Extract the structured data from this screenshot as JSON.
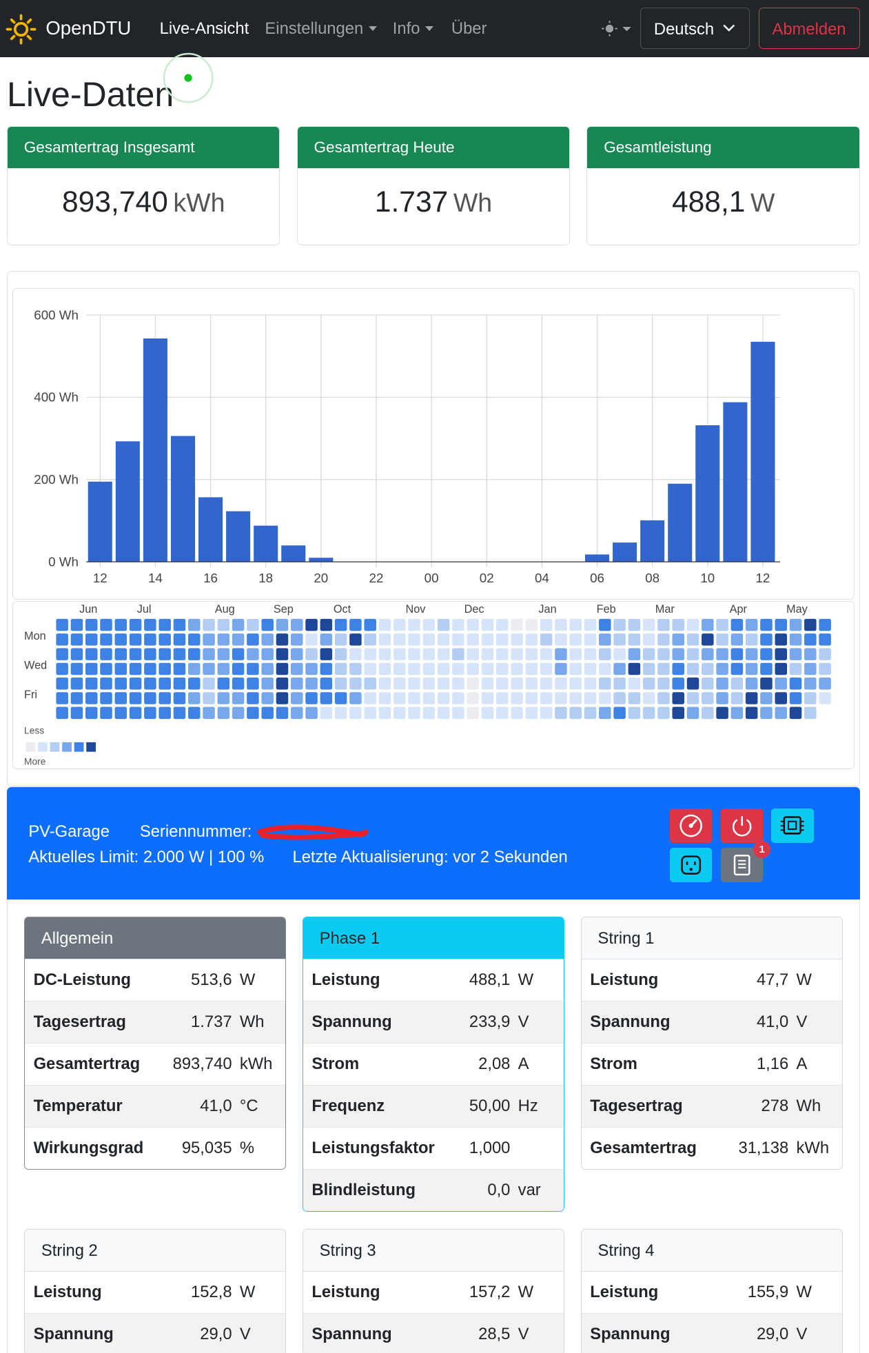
{
  "navbar": {
    "brand": "OpenDTU",
    "items": [
      "Live-Ansicht",
      "Einstellungen",
      "Info",
      "Über"
    ],
    "language": "Deutsch",
    "logout": "Abmelden"
  },
  "heading": "Live-Daten",
  "summary": [
    {
      "title": "Gesamtertrag Insgesamt",
      "value": "893,740",
      "unit": "kWh"
    },
    {
      "title": "Gesamtertrag Heute",
      "value": "1.737",
      "unit": "Wh"
    },
    {
      "title": "Gesamtleistung",
      "value": "488,1",
      "unit": "W"
    }
  ],
  "chart_data": {
    "type": "bar",
    "categories": [
      "12",
      null,
      "14",
      null,
      "16",
      null,
      "18",
      null,
      "20",
      null,
      "22",
      null,
      "00",
      null,
      "02",
      null,
      "04",
      null,
      "06",
      null,
      "08",
      null,
      "10",
      null,
      "12"
    ],
    "values": [
      195,
      293,
      543,
      306,
      157,
      123,
      88,
      40,
      10,
      0,
      0,
      0,
      0,
      0,
      0,
      0,
      0,
      0,
      18,
      47,
      101,
      190,
      332,
      388,
      535
    ],
    "color": "#3366cc",
    "ylim": [
      0,
      600
    ],
    "yticks": [
      {
        "value": 0,
        "label": "0 Wh"
      },
      {
        "value": 200,
        "label": "200 Wh"
      },
      {
        "value": 400,
        "label": "400 Wh"
      },
      {
        "value": 600,
        "label": "600 Wh"
      }
    ],
    "grid": true
  },
  "heatmap": {
    "months": [
      "Jun",
      "Jul",
      "Aug",
      "Sep",
      "Oct",
      "Nov",
      "Dec",
      "Jan",
      "Feb",
      "Mar",
      "Apr",
      "May"
    ],
    "days": [
      "Mon",
      "Wed",
      "Fri"
    ],
    "legend": {
      "less": "Less",
      "more": "More"
    },
    "colors": [
      "#ebedf0",
      "#d6e4f9",
      "#b3cdf3",
      "#78a8ec",
      "#3d82e4",
      "#1f4799"
    ],
    "rows": [
      [
        4,
        4,
        4,
        4,
        4,
        4,
        4,
        4,
        4,
        3,
        2,
        2,
        3,
        2,
        4,
        3,
        3,
        5,
        5,
        4,
        4,
        4,
        1,
        1,
        1,
        1,
        2,
        1,
        1,
        1,
        1,
        0,
        0,
        1,
        1,
        1,
        1,
        4,
        2,
        2,
        1,
        2,
        2,
        1,
        3,
        2,
        4,
        3,
        4,
        4,
        3,
        5,
        4
      ],
      [
        4,
        4,
        4,
        4,
        4,
        4,
        4,
        4,
        4,
        4,
        3,
        3,
        3,
        4,
        3,
        5,
        3,
        1,
        3,
        2,
        5,
        2,
        1,
        1,
        1,
        1,
        1,
        1,
        1,
        1,
        1,
        1,
        1,
        2,
        1,
        1,
        1,
        3,
        2,
        2,
        1,
        2,
        3,
        2,
        5,
        2,
        3,
        2,
        4,
        5,
        3,
        4,
        4
      ],
      [
        4,
        4,
        4,
        4,
        4,
        4,
        4,
        4,
        4,
        4,
        3,
        3,
        4,
        3,
        3,
        5,
        3,
        2,
        5,
        2,
        1,
        1,
        1,
        1,
        1,
        1,
        1,
        2,
        1,
        1,
        1,
        1,
        1,
        1,
        3,
        1,
        1,
        2,
        1,
        3,
        2,
        2,
        3,
        2,
        3,
        3,
        4,
        3,
        4,
        5,
        3,
        3,
        2
      ],
      [
        4,
        4,
        4,
        4,
        4,
        4,
        4,
        4,
        4,
        3,
        3,
        3,
        4,
        4,
        3,
        5,
        3,
        3,
        4,
        2,
        2,
        1,
        1,
        1,
        1,
        1,
        1,
        1,
        1,
        1,
        1,
        1,
        1,
        1,
        3,
        1,
        1,
        1,
        3,
        5,
        2,
        2,
        4,
        2,
        2,
        3,
        4,
        3,
        4,
        5,
        2,
        3,
        2
      ],
      [
        4,
        4,
        4,
        4,
        4,
        4,
        4,
        4,
        4,
        4,
        2,
        4,
        4,
        4,
        3,
        5,
        3,
        3,
        4,
        2,
        2,
        2,
        1,
        1,
        1,
        1,
        1,
        1,
        0,
        1,
        1,
        1,
        1,
        1,
        1,
        1,
        1,
        2,
        2,
        1,
        2,
        2,
        4,
        5,
        2,
        3,
        2,
        3,
        5,
        3,
        4,
        3,
        3
      ],
      [
        4,
        4,
        4,
        4,
        4,
        4,
        4,
        4,
        4,
        3,
        2,
        3,
        3,
        4,
        3,
        5,
        3,
        4,
        4,
        4,
        3,
        1,
        1,
        1,
        1,
        1,
        1,
        1,
        0,
        1,
        1,
        1,
        1,
        1,
        1,
        1,
        1,
        1,
        2,
        2,
        1,
        2,
        5,
        2,
        2,
        3,
        2,
        5,
        3,
        5,
        4,
        2,
        1
      ],
      [
        4,
        4,
        4,
        4,
        4,
        4,
        4,
        4,
        4,
        4,
        3,
        3,
        3,
        4,
        4,
        4,
        3,
        3,
        1,
        1,
        1,
        1,
        1,
        1,
        1,
        1,
        1,
        1,
        0,
        1,
        1,
        1,
        1,
        1,
        2,
        2,
        2,
        3,
        4,
        2,
        2,
        2,
        5,
        3,
        2,
        5,
        3,
        5,
        3,
        3,
        5,
        2,
        null
      ]
    ]
  },
  "inverter": {
    "name": "PV-Garage",
    "serial_label": "Seriennummer:",
    "limit": "Aktuelles Limit: 2.000 W | 100 %",
    "updated": "Letzte Aktualisierung: vor 2 Sekunden",
    "badge": "1",
    "cards": [
      {
        "title": "Allgemein",
        "rows": [
          [
            "DC-Leistung",
            "513,6",
            "W"
          ],
          [
            "Tagesertrag",
            "1.737",
            "Wh"
          ],
          [
            "Gesamtertrag",
            "893,740",
            "kWh"
          ],
          [
            "Temperatur",
            "41,0",
            "°C"
          ],
          [
            "Wirkungsgrad",
            "95,035",
            "%"
          ]
        ]
      },
      {
        "title": "Phase 1",
        "rows": [
          [
            "Leistung",
            "488,1",
            "W"
          ],
          [
            "Spannung",
            "233,9",
            "V"
          ],
          [
            "Strom",
            "2,08",
            "A"
          ],
          [
            "Frequenz",
            "50,00",
            "Hz"
          ],
          [
            "Leistungsfaktor",
            "1,000",
            null
          ],
          [
            "Blindleistung",
            "0,0",
            "var"
          ]
        ]
      },
      {
        "title": "String 1",
        "rows": [
          [
            "Leistung",
            "47,7",
            "W"
          ],
          [
            "Spannung",
            "41,0",
            "V"
          ],
          [
            "Strom",
            "1,16",
            "A"
          ],
          [
            "Tagesertrag",
            "278",
            "Wh"
          ],
          [
            "Gesamtertrag",
            "31,138",
            "kWh"
          ]
        ]
      },
      {
        "title": "String 2",
        "rows": [
          [
            "Leistung",
            "152,8",
            "W"
          ],
          [
            "Spannung",
            "29,0",
            "V"
          ]
        ]
      },
      {
        "title": "String 3",
        "rows": [
          [
            "Leistung",
            "157,2",
            "W"
          ],
          [
            "Spannung",
            "28,5",
            "V"
          ]
        ]
      },
      {
        "title": "String 4",
        "rows": [
          [
            "Leistung",
            "155,9",
            "W"
          ],
          [
            "Spannung",
            "29,0",
            "V"
          ]
        ]
      }
    ]
  }
}
